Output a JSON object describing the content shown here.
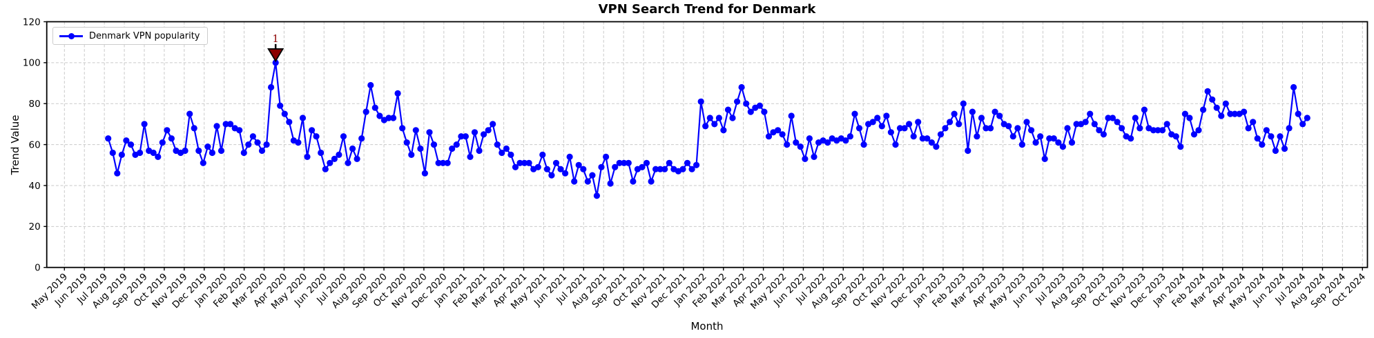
{
  "figure": {
    "title": "VPN Search Trend for Denmark",
    "xlabel": "Month",
    "ylabel": "Trend Value"
  },
  "chart_data": {
    "type": "line",
    "title": "VPN Search Trend for Denmark",
    "xlabel": "Month",
    "ylabel": "Trend Value",
    "ylim": [
      0,
      120
    ],
    "yticks": [
      0,
      20,
      40,
      60,
      80,
      100,
      120
    ],
    "grid": true,
    "background": "#ffffff",
    "legend": {
      "position": "upper left",
      "entries": [
        "Denmark VPN popularity"
      ]
    },
    "x_tick_labels": [
      "May 2019",
      "Jun 2019",
      "Jul 2019",
      "Aug 2019",
      "Sep 2019",
      "Oct 2019",
      "Nov 2019",
      "Dec 2019",
      "Jan 2020",
      "Feb 2020",
      "Mar 2020",
      "Apr 2020",
      "May 2020",
      "Jun 2020",
      "Jul 2020",
      "Aug 2020",
      "Sep 2020",
      "Oct 2020",
      "Nov 2020",
      "Dec 2020",
      "Jan 2021",
      "Feb 2021",
      "Mar 2021",
      "Apr 2021",
      "May 2021",
      "Jun 2021",
      "Jul 2021",
      "Aug 2021",
      "Sep 2021",
      "Oct 2021",
      "Nov 2021",
      "Dec 2021",
      "Jan 2022",
      "Feb 2022",
      "Mar 2022",
      "Apr 2022",
      "May 2022",
      "Jun 2022",
      "Jul 2022",
      "Aug 2022",
      "Sep 2022",
      "Oct 2022",
      "Nov 2022",
      "Dec 2022",
      "Jan 2023",
      "Feb 2023",
      "Mar 2023",
      "Apr 2023",
      "May 2023",
      "Jun 2023",
      "Jul 2023",
      "Aug 2023",
      "Sep 2023",
      "Oct 2023",
      "Nov 2023",
      "Dec 2023",
      "Jan 2024",
      "Feb 2024",
      "Mar 2024",
      "Apr 2024",
      "May 2024",
      "Jun 2024",
      "Jul 2024",
      "Aug 2024",
      "Sep 2024",
      "Oct 2024"
    ],
    "x_sampling": "weekly points from Jul 2019 to Aug 2024",
    "series": [
      {
        "name": "Denmark VPN popularity",
        "color": "#0000ff",
        "marker": "circle",
        "values": [
          63,
          56,
          46,
          55,
          62,
          60,
          55,
          56,
          70,
          57,
          56,
          54,
          61,
          67,
          63,
          57,
          56,
          57,
          75,
          68,
          57,
          51,
          59,
          56,
          69,
          57,
          70,
          70,
          68,
          67,
          56,
          60,
          64,
          61,
          57,
          60,
          88,
          100,
          79,
          75,
          71,
          62,
          61,
          73,
          54,
          67,
          64,
          56,
          48,
          51,
          53,
          55,
          64,
          51,
          58,
          53,
          63,
          76,
          89,
          78,
          74,
          72,
          73,
          73,
          85,
          68,
          61,
          55,
          67,
          58,
          46,
          66,
          60,
          51,
          51,
          51,
          58,
          60,
          64,
          64,
          54,
          66,
          57,
          65,
          67,
          70,
          60,
          56,
          58,
          55,
          49,
          51,
          51,
          51,
          48,
          49,
          55,
          48,
          45,
          51,
          48,
          46,
          54,
          42,
          50,
          48,
          42,
          45,
          35,
          49,
          54,
          41,
          49,
          51,
          51,
          51,
          42,
          48,
          49,
          51,
          42,
          48,
          48,
          48,
          51,
          48,
          47,
          48,
          51,
          48,
          50,
          81,
          69,
          73,
          70,
          73,
          67,
          77,
          73,
          81,
          88,
          80,
          76,
          78,
          79,
          76,
          64,
          66,
          67,
          65,
          60,
          74,
          61,
          59,
          53,
          63,
          54,
          61,
          62,
          61,
          63,
          62,
          63,
          62,
          64,
          75,
          68,
          60,
          70,
          71,
          73,
          69,
          74,
          66,
          60,
          68,
          68,
          70,
          64,
          71,
          63,
          63,
          61,
          59,
          65,
          68,
          71,
          75,
          70,
          80,
          57,
          76,
          64,
          73,
          68,
          68,
          76,
          74,
          70,
          69,
          64,
          68,
          60,
          71,
          67,
          61,
          64,
          53,
          63,
          63,
          61,
          59,
          68,
          61,
          70,
          70,
          71,
          75,
          70,
          67,
          65,
          73,
          73,
          71,
          68,
          64,
          63,
          73,
          68,
          77,
          68,
          67,
          67,
          67,
          70,
          65,
          64,
          59,
          75,
          73,
          65,
          67,
          77,
          86,
          82,
          78,
          74,
          80,
          75,
          75,
          75,
          76,
          68,
          71,
          63,
          60,
          67,
          64,
          57,
          64,
          58,
          68,
          88,
          75,
          70,
          73
        ]
      }
    ],
    "annotations": [
      {
        "label": "1",
        "series_index": 37,
        "value": 100,
        "near_x": "Mar 2020",
        "marker": "triangle-down",
        "fill_color": "#8b0000",
        "edge_color": "#000000",
        "label_color": "#8b0000"
      }
    ]
  }
}
